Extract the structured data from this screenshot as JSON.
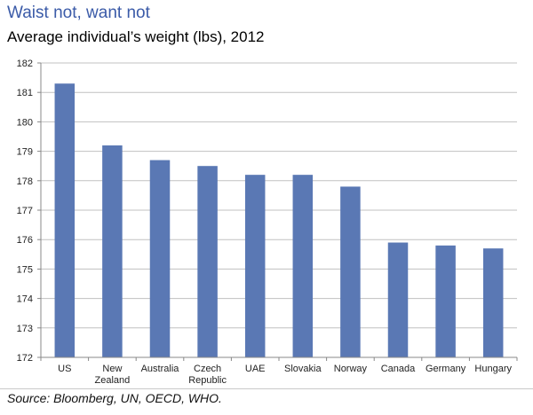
{
  "chart_data": {
    "type": "bar",
    "title": "Waist not, want not",
    "subtitle": "Average individual’s weight (lbs), 2012",
    "categories": [
      [
        "US"
      ],
      [
        "New",
        "Zealand"
      ],
      [
        "Australia"
      ],
      [
        "Czech",
        "Republic"
      ],
      [
        "UAE"
      ],
      [
        "Slovakia"
      ],
      [
        "Norway"
      ],
      [
        "Canada"
      ],
      [
        "Germany"
      ],
      [
        "Hungary"
      ]
    ],
    "values": [
      181.3,
      179.2,
      178.7,
      178.5,
      178.2,
      178.2,
      177.8,
      175.9,
      175.8,
      175.7
    ],
    "xlabel": "",
    "ylabel": "",
    "ylim": [
      172,
      182
    ],
    "yticks": [
      172,
      173,
      174,
      175,
      176,
      177,
      178,
      179,
      180,
      181,
      182
    ],
    "grid": true,
    "bar_color": "#5a78b4",
    "grid_color": "#c0c0c0"
  },
  "source": "Source: Bloomberg, UN, OECD, WHO."
}
